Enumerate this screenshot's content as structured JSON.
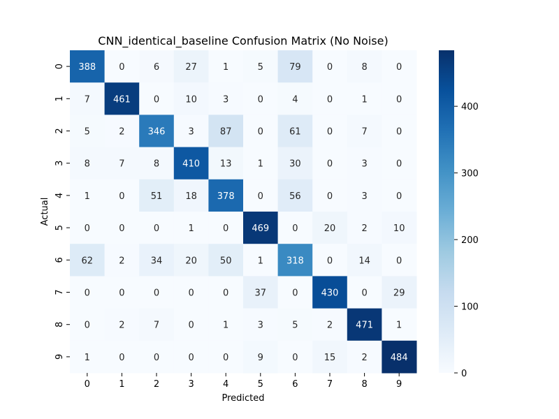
{
  "chart_data": {
    "type": "heatmap",
    "title": "CNN_identical_baseline Confusion Matrix (No Noise)",
    "xlabel": "Predicted",
    "ylabel": "Actual",
    "x_categories": [
      "0",
      "1",
      "2",
      "3",
      "4",
      "5",
      "6",
      "7",
      "8",
      "9"
    ],
    "y_categories": [
      "0",
      "1",
      "2",
      "3",
      "4",
      "5",
      "6",
      "7",
      "8",
      "9"
    ],
    "values": [
      [
        388,
        0,
        6,
        27,
        1,
        5,
        79,
        0,
        8,
        0
      ],
      [
        7,
        461,
        0,
        10,
        3,
        0,
        4,
        0,
        1,
        0
      ],
      [
        5,
        2,
        346,
        3,
        87,
        0,
        61,
        0,
        7,
        0
      ],
      [
        8,
        7,
        8,
        410,
        13,
        1,
        30,
        0,
        3,
        0
      ],
      [
        1,
        0,
        51,
        18,
        378,
        0,
        56,
        0,
        3,
        0
      ],
      [
        0,
        0,
        0,
        1,
        0,
        469,
        0,
        20,
        2,
        10
      ],
      [
        62,
        2,
        34,
        20,
        50,
        1,
        318,
        0,
        14,
        0
      ],
      [
        0,
        0,
        0,
        0,
        0,
        37,
        0,
        430,
        0,
        29
      ],
      [
        0,
        2,
        7,
        0,
        1,
        3,
        5,
        2,
        471,
        1
      ],
      [
        1,
        0,
        0,
        0,
        0,
        9,
        0,
        15,
        2,
        484
      ]
    ],
    "colormap": "Blues",
    "value_range": [
      0,
      484
    ],
    "colorbar_ticks": [
      0,
      100,
      200,
      300,
      400
    ],
    "annotations": "cell counts"
  }
}
